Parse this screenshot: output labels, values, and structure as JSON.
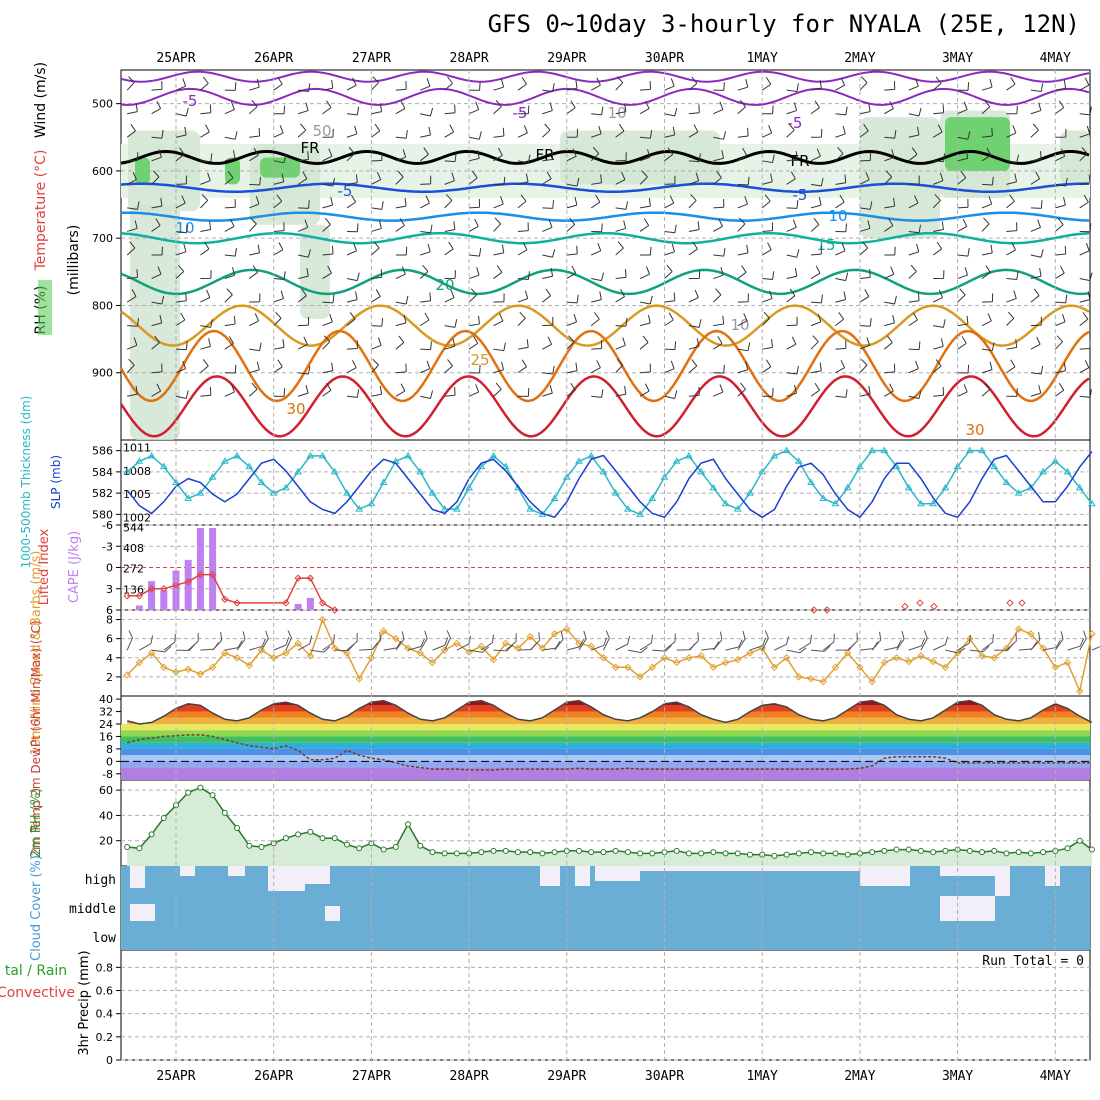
{
  "title": "GFS 0~10day 3-hourly for NYALA (25E, 12N)",
  "date_labels": [
    "25APR",
    "26APR",
    "27APR",
    "28APR",
    "29APR",
    "30APR",
    "1MAY",
    "2MAY",
    "3MAY",
    "4MAY"
  ],
  "colors": {
    "grid": "#b0b0b0",
    "slp": "#1a3fcf",
    "thickness": "#2ab7c9",
    "cape": "#c080f0",
    "lifted_index": "#e04040",
    "wind10m": "#e0a030",
    "rh2m_fill": "#8fcf8f",
    "rh2m_line": "#2a7a2a",
    "cloud": "#6aaed6",
    "cloud_gap": "#f2eff8"
  },
  "panels": {
    "upper": {
      "ylabels": [
        "Wind (m/s)",
        "Temperature (°C)",
        "(millibars)",
        "RH (%)"
      ],
      "yticks": [
        500,
        600,
        700,
        800,
        900
      ],
      "ylim": [
        1000,
        450
      ],
      "contour_labels": [
        "-5",
        "-5",
        "-5",
        "FR",
        "FR",
        "FR",
        "-5",
        "-5",
        "10",
        "10",
        "15",
        "20",
        "25",
        "30",
        "30",
        "50",
        "10",
        "10"
      ]
    },
    "slp_thickness": {
      "ylabel_left": "1000-500mb Thickness (dm)",
      "ylabel_right": "SLP (mb)",
      "thickness_ticks": [
        580,
        582,
        584,
        586
      ],
      "slp_ticks": [
        1002,
        1005,
        1008,
        1011
      ]
    },
    "cape_li": {
      "ylabel_left": "Lifted Index",
      "ylabel_right": "CAPE (J/kg)",
      "li_ticks": [
        -6,
        -3,
        0,
        3,
        6
      ],
      "cape_ticks": [
        136,
        272,
        408,
        544
      ]
    },
    "wind10m": {
      "ylabel": "10m Wind Speed & Barbs (m/s)",
      "yticks": [
        2,
        4,
        6,
        8
      ]
    },
    "temp2m": {
      "ylabel": "2m Temp 2m DewPt (6hr Min/Max) (°C)",
      "yticks": [
        -8,
        0,
        8,
        16,
        24,
        32,
        40
      ]
    },
    "rh2m": {
      "ylabel": "2m RH (%)",
      "yticks": [
        20,
        40,
        60
      ]
    },
    "cloud": {
      "ylabel": "Cloud Cover (%)",
      "levels": [
        "high",
        "middle",
        "low"
      ]
    },
    "precip": {
      "ylabel": "3hr Precip (mm)",
      "ylabel_left": "tal / Rain",
      "ylabel_left2": "Convective",
      "yticks": [
        0,
        0.2,
        0.4,
        0.6,
        0.8
      ],
      "run_total": "Run Total = 0"
    }
  },
  "chart_data": [
    {
      "type": "line",
      "panel": "slp_thickness",
      "x_unit": "hours from 24APR 12Z (3-hourly)",
      "x": [
        0,
        3,
        6,
        9,
        12,
        15,
        18,
        21,
        24,
        27,
        30,
        33,
        36,
        39,
        42,
        45,
        48,
        51,
        54,
        57,
        60,
        63,
        66,
        69,
        72,
        75,
        78,
        81,
        84,
        87,
        90,
        93,
        96,
        99,
        102,
        105,
        108,
        111,
        114,
        117,
        120,
        123,
        126,
        129,
        132,
        135,
        138,
        141,
        144,
        147,
        150,
        153,
        156,
        159,
        162,
        165,
        168,
        171,
        174,
        177,
        180,
        183,
        186,
        189,
        192,
        195,
        198,
        201,
        204,
        207,
        210,
        213,
        216,
        219,
        222,
        225,
        228,
        231,
        234,
        237
      ],
      "series": [
        {
          "name": "SLP (mb)",
          "values": [
            1005.5,
            1003.5,
            1002.5,
            1004,
            1006,
            1007,
            1006.5,
            1005,
            1004,
            1005,
            1007,
            1009,
            1009.5,
            1008,
            1006,
            1004,
            1003,
            1002.5,
            1004,
            1006,
            1008,
            1009.5,
            1009,
            1007,
            1005,
            1003,
            1002.5,
            1004,
            1007,
            1009,
            1009.5,
            1008,
            1006,
            1004,
            1002.5,
            1002,
            1004,
            1007,
            1009.5,
            1010,
            1008,
            1006,
            1004,
            1002.5,
            1002,
            1004,
            1007,
            1009,
            1009.5,
            1007,
            1005,
            1003,
            1002,
            1003,
            1006,
            1008.5,
            1009,
            1007.5,
            1005,
            1003,
            1002,
            1004,
            1007,
            1009,
            1009,
            1007,
            1004.5,
            1002.5,
            1002,
            1004,
            1007,
            1009.5,
            1010,
            1008,
            1006,
            1004,
            1004,
            1006,
            1008.5,
            1010.5
          ]
        },
        {
          "name": "1000-500mb Thickness (dm)",
          "values": [
            584,
            585,
            585.5,
            584.5,
            583,
            581.5,
            582,
            583.5,
            585,
            585.5,
            584.5,
            583,
            582,
            582.5,
            584,
            585.5,
            585.5,
            584,
            582,
            580.5,
            581,
            583,
            585,
            585.5,
            584,
            582,
            580.5,
            580.5,
            582.5,
            584.5,
            585.5,
            584.5,
            582.5,
            580.5,
            580,
            581.5,
            583.5,
            585,
            585.5,
            584,
            582,
            580.5,
            580,
            581.5,
            583.5,
            585,
            585.5,
            584,
            582.5,
            581,
            580.5,
            582,
            584,
            585.5,
            586,
            585,
            583,
            581.5,
            581,
            582.5,
            584.5,
            586,
            586,
            584.5,
            582.5,
            581,
            581,
            582.5,
            584.5,
            586,
            586,
            584.5,
            583,
            582,
            582.5,
            584,
            585,
            584,
            582.5,
            581
          ]
        }
      ]
    },
    {
      "type": "bar",
      "panel": "cape_li",
      "name": "CAPE (J/kg)",
      "x": [
        3,
        6,
        9,
        12,
        15,
        18,
        21,
        42,
        45
      ],
      "values": [
        30,
        190,
        130,
        260,
        330,
        540,
        540,
        40,
        80
      ]
    },
    {
      "type": "line",
      "panel": "cape_li",
      "name": "Lifted Index",
      "x": [
        0,
        3,
        6,
        9,
        12,
        15,
        18,
        21,
        24,
        27,
        39,
        42,
        45,
        48,
        51
      ],
      "values": [
        4,
        4,
        3,
        3,
        2.5,
        2,
        1,
        1,
        4.5,
        5,
        5,
        1.5,
        1.5,
        5,
        6
      ]
    },
    {
      "type": "line",
      "panel": "wind10m",
      "name": "10m Wind Speed (m/s)",
      "x": [
        0,
        3,
        6,
        9,
        12,
        15,
        18,
        21,
        24,
        27,
        30,
        33,
        36,
        39,
        42,
        45,
        48,
        51,
        54,
        57,
        60,
        63,
        66,
        69,
        72,
        75,
        78,
        81,
        84,
        87,
        90,
        93,
        96,
        99,
        102,
        105,
        108,
        111,
        114,
        117,
        120,
        123,
        126,
        129,
        132,
        135,
        138,
        141,
        144,
        147,
        150,
        153,
        156,
        159,
        162,
        165,
        168,
        171,
        174,
        177,
        180,
        183,
        186,
        189,
        192,
        195,
        198,
        201,
        204,
        207,
        210,
        213,
        216,
        219,
        222,
        225,
        228,
        231,
        234,
        237
      ],
      "values": [
        2.2,
        3.5,
        4.5,
        3,
        2.5,
        2.8,
        2.3,
        3,
        4.5,
        4,
        3.2,
        4.8,
        4,
        4.5,
        5.5,
        4.2,
        8,
        5,
        4.5,
        1.8,
        4,
        6.8,
        6,
        5,
        4.5,
        3.5,
        4.8,
        5.5,
        4.6,
        5.2,
        3.8,
        5.5,
        5,
        6.2,
        5,
        6.5,
        7,
        5.5,
        5.2,
        4,
        3,
        3,
        2,
        3,
        4,
        3.5,
        4,
        4.2,
        3,
        3.5,
        3.8,
        4.5,
        5,
        3,
        4,
        2,
        1.8,
        1.5,
        3,
        4.5,
        3,
        1.5,
        3.5,
        4,
        3.6,
        4.2,
        3.6,
        3,
        4.5,
        6,
        4.2,
        4,
        5,
        7,
        6.5,
        5,
        3,
        3.5,
        0.5,
        6.5
      ]
    },
    {
      "type": "area",
      "panel": "temp2m",
      "name": "2m Temp (°C)",
      "x": [
        0,
        3,
        6,
        9,
        12,
        15,
        18,
        21,
        24,
        27,
        30,
        33,
        36,
        39,
        42,
        45,
        48,
        51,
        54,
        57,
        60,
        63,
        66,
        69,
        72,
        75,
        78,
        81,
        84,
        87,
        90,
        93,
        96,
        99,
        102,
        105,
        108,
        111,
        114,
        117,
        120,
        123,
        126,
        129,
        132,
        135,
        138,
        141,
        144,
        147,
        150,
        153,
        156,
        159,
        162,
        165,
        168,
        171,
        174,
        177,
        180,
        183,
        186,
        189,
        192,
        195,
        198,
        201,
        204,
        207,
        210,
        213,
        216,
        219,
        222,
        225,
        228,
        231,
        234,
        237
      ],
      "values": [
        26,
        24,
        25,
        29,
        34,
        37,
        36,
        31,
        27,
        26,
        28,
        33,
        37,
        38,
        36,
        31,
        27,
        26,
        29,
        34,
        38,
        39,
        36,
        31,
        27,
        26,
        28,
        33,
        38,
        39,
        36,
        31,
        27,
        26,
        28,
        33,
        38,
        39,
        35,
        30,
        27,
        26,
        28,
        32,
        37,
        38,
        35,
        30,
        27,
        25,
        27,
        32,
        36,
        37,
        35,
        30,
        27,
        26,
        28,
        33,
        38,
        39,
        36,
        30,
        27,
        26,
        28,
        33,
        38,
        39,
        36,
        30,
        27,
        26,
        28,
        33,
        37,
        34,
        29,
        25
      ]
    },
    {
      "type": "line",
      "panel": "temp2m",
      "name": "2m DewPt (°C)",
      "x": [
        0,
        3,
        6,
        9,
        12,
        15,
        18,
        21,
        24,
        27,
        30,
        33,
        36,
        39,
        42,
        45,
        48,
        51,
        54,
        57,
        60,
        63,
        66,
        69,
        72,
        75,
        78,
        81,
        84,
        87,
        90,
        93,
        96,
        99,
        102,
        105,
        108,
        111,
        114,
        117,
        120,
        123,
        126,
        129,
        132,
        135,
        138,
        141,
        144,
        147,
        150,
        153,
        156,
        159,
        162,
        165,
        168,
        171,
        174,
        177,
        180,
        183,
        186,
        189,
        192,
        195,
        198,
        201,
        204,
        207,
        210,
        213,
        216,
        219,
        222,
        225,
        228,
        231,
        234,
        237
      ],
      "values": [
        12,
        14,
        15,
        16,
        16.5,
        17,
        17,
        16,
        14,
        12,
        10,
        9,
        8,
        10,
        7,
        1,
        1,
        2,
        7,
        4,
        2,
        1,
        -1,
        -3,
        -4,
        -5,
        -5,
        -5,
        -5.5,
        -5.5,
        -5.5,
        -5,
        -5,
        -5,
        -5,
        -5,
        -5,
        -4.5,
        -5,
        -5,
        -5,
        -4.5,
        -5,
        -5,
        -5,
        -5,
        -5,
        -5,
        -5,
        -5,
        -5,
        -5,
        -5,
        -5,
        -5,
        -5,
        -5,
        -5,
        -5,
        -5,
        -4.5,
        -3,
        2,
        3,
        3,
        3,
        3,
        2,
        -1,
        -1,
        -1,
        -1,
        -1,
        -1,
        -1,
        -1,
        -1,
        -1,
        -1,
        -1
      ]
    },
    {
      "type": "line",
      "panel": "rh2m",
      "name": "2m RH (%)",
      "x": [
        0,
        3,
        6,
        9,
        12,
        15,
        18,
        21,
        24,
        27,
        30,
        33,
        36,
        39,
        42,
        45,
        48,
        51,
        54,
        57,
        60,
        63,
        66,
        69,
        72,
        75,
        78,
        81,
        84,
        87,
        90,
        93,
        96,
        99,
        102,
        105,
        108,
        111,
        114,
        117,
        120,
        123,
        126,
        129,
        132,
        135,
        138,
        141,
        144,
        147,
        150,
        153,
        156,
        159,
        162,
        165,
        168,
        171,
        174,
        177,
        180,
        183,
        186,
        189,
        192,
        195,
        198,
        201,
        204,
        207,
        210,
        213,
        216,
        219,
        222,
        225,
        228,
        231,
        234,
        237
      ],
      "values": [
        15,
        14,
        25,
        38,
        48,
        58,
        62,
        56,
        42,
        30,
        16,
        15,
        18,
        22,
        25,
        27,
        22,
        22,
        17,
        14,
        18,
        13,
        15,
        33,
        16,
        11,
        10,
        10,
        10,
        11,
        12,
        12,
        11,
        11,
        10,
        11,
        12,
        12,
        11,
        11,
        12,
        11,
        10,
        10,
        11,
        12,
        10,
        10,
        11,
        10,
        10,
        9,
        9,
        8,
        9,
        10,
        11,
        10,
        10,
        9,
        10,
        11,
        12,
        13,
        13,
        12,
        11,
        12,
        13,
        12,
        11,
        12,
        10,
        11,
        10,
        11,
        12,
        14,
        20,
        13
      ]
    }
  ]
}
